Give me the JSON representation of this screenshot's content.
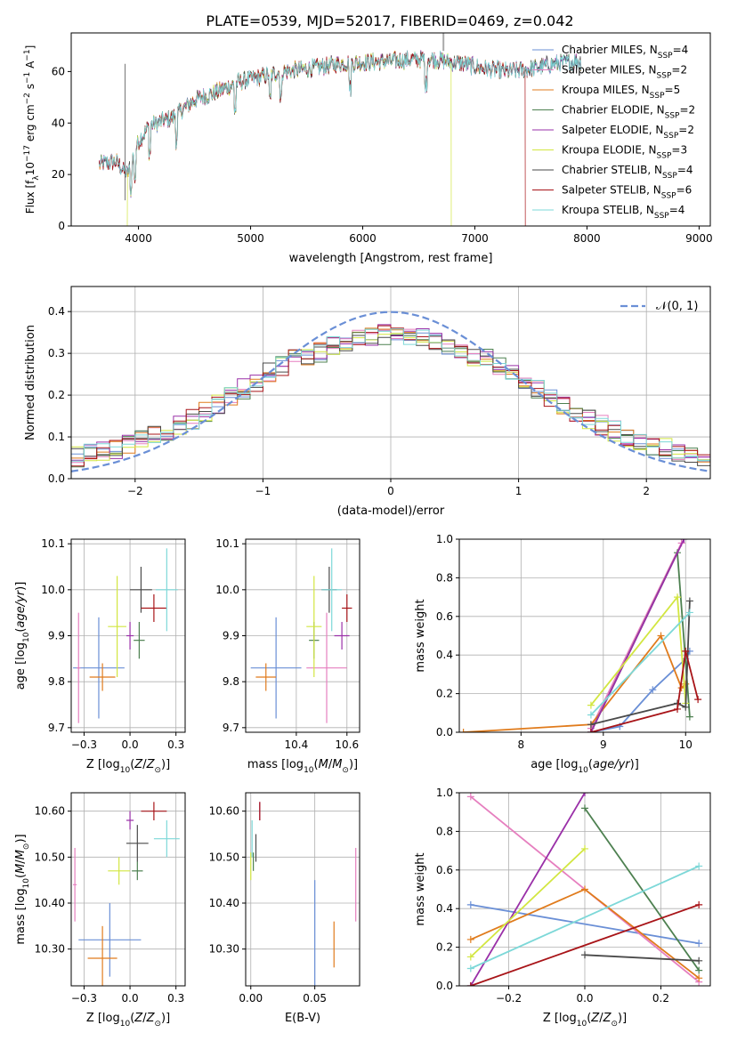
{
  "figure_title": "PLATE=0539, MJD=52017, FIBERID=0469, z=0.042",
  "colors": {
    "Chabrier MILES": "#6a8fd6",
    "Salpeter MILES": "#e67fbf",
    "Kroupa MILES": "#e07b1c",
    "Chabrier ELODIE": "#4d8050",
    "Salpeter ELODIE": "#9a30a8",
    "Kroupa ELODIE": "#d2e640",
    "Chabrier STELIB": "#4a4a4a",
    "Salpeter STELIB": "#a81418",
    "Kroupa STELIB": "#7dd8d8",
    "normal": "#6a8fd6"
  },
  "chart_data": [
    {
      "id": "spectrum",
      "type": "line",
      "xlabel": "wavelength [Angstrom, rest frame]",
      "ylabel": "Flux [f_λ10^-17 erg cm^-2 s^-1 A^-1]",
      "xlim": [
        3400,
        9100
      ],
      "ylim": [
        0,
        75
      ],
      "xticks": [
        4000,
        5000,
        6000,
        7000,
        8000,
        9000
      ],
      "yticks": [
        0,
        20,
        40,
        60
      ],
      "grid": false,
      "legend_position": "right",
      "legend": [
        {
          "name": "Chabrier MILES",
          "nssp": "4"
        },
        {
          "name": "Salpeter MILES",
          "nssp": "2"
        },
        {
          "name": "Kroupa MILES",
          "nssp": "5"
        },
        {
          "name": "Chabrier ELODIE",
          "nssp": "2"
        },
        {
          "name": "Salpeter ELODIE",
          "nssp": "2"
        },
        {
          "name": "Kroupa ELODIE",
          "nssp": "3"
        },
        {
          "name": "Chabrier STELIB",
          "nssp": "4"
        },
        {
          "name": "Salpeter STELIB",
          "nssp": "6"
        },
        {
          "name": "Kroupa STELIB",
          "nssp": "4"
        }
      ],
      "continuum": {
        "x": [
          3650,
          3800,
          3900,
          4000,
          4100,
          4300,
          4500,
          4700,
          4900,
          5100,
          5300,
          5500,
          5800,
          6200,
          6600,
          6900,
          7100,
          7300,
          7500,
          7700,
          7900
        ],
        "y": [
          24,
          25,
          20,
          33,
          39,
          42,
          49,
          52,
          56,
          58,
          60,
          61,
          63,
          64,
          65,
          63,
          61,
          60,
          61,
          63,
          64
        ]
      },
      "data_range": [
        3650,
        7950
      ],
      "model_cutoffs": {
        "Kroupa ELODIE": [
          3900,
          6790
        ],
        "Salpeter STELIB": [
          3650,
          7450
        ]
      }
    },
    {
      "id": "residual_hist",
      "type": "histogram",
      "xlabel": "(data-model)/error",
      "ylabel": "Normed distribution",
      "xlim": [
        -2.5,
        2.5
      ],
      "ylim": [
        0,
        0.46
      ],
      "xticks": [
        -2,
        -1,
        0,
        1,
        2
      ],
      "yticks": [
        0.0,
        0.1,
        0.2,
        0.3,
        0.4
      ],
      "grid": true,
      "legend_position": "top-right",
      "legend_label": "𝒩(0, 1)",
      "bin_width": 0.1
    },
    {
      "id": "age_vs_Z",
      "type": "scatter",
      "xlabel": "Z [log10(Z/Z⊙)]",
      "ylabel": "age [log10(age/yr)]",
      "xlim": [
        -0.32,
        0.3
      ],
      "ylim": [
        9.69,
        10.11
      ],
      "xticks": [
        -0.25,
        0.0,
        0.25
      ],
      "yticks": [
        9.7,
        9.8,
        9.9,
        10.0,
        10.1
      ],
      "grid": true,
      "points": [
        {
          "series": "Chabrier MILES",
          "x": -0.17,
          "xerr": 0.14,
          "y": 9.83,
          "yerr": 0.11
        },
        {
          "series": "Salpeter MILES",
          "x": -0.28,
          "xerr": 0.01,
          "y": 9.83,
          "yerr": 0.12
        },
        {
          "series": "Kroupa MILES",
          "x": -0.15,
          "xerr": 0.07,
          "y": 9.81,
          "yerr": 0.03
        },
        {
          "series": "Chabrier ELODIE",
          "x": 0.05,
          "xerr": 0.03,
          "y": 9.89,
          "yerr": 0.04
        },
        {
          "series": "Salpeter ELODIE",
          "x": 0.0,
          "xerr": 0.02,
          "y": 9.9,
          "yerr": 0.03
        },
        {
          "series": "Kroupa ELODIE",
          "x": -0.07,
          "xerr": 0.05,
          "y": 9.92,
          "yerr": 0.11
        },
        {
          "series": "Chabrier STELIB",
          "x": 0.06,
          "xerr": 0.06,
          "y": 10.0,
          "yerr": 0.05
        },
        {
          "series": "Salpeter STELIB",
          "x": 0.13,
          "xerr": 0.07,
          "y": 9.96,
          "yerr": 0.03
        },
        {
          "series": "Kroupa STELIB",
          "x": 0.2,
          "xerr": 0.06,
          "y": 10.0,
          "yerr": 0.09
        }
      ]
    },
    {
      "id": "age_vs_mass",
      "type": "scatter",
      "xlabel": "mass [log10(M/M⊙)]",
      "xlim": [
        10.2,
        10.65
      ],
      "ylim": [
        9.69,
        10.11
      ],
      "xticks": [
        10.4,
        10.6
      ],
      "yticks": [
        9.7,
        9.8,
        9.9,
        10.0,
        10.1
      ],
      "grid": true,
      "points": [
        {
          "series": "Chabrier MILES",
          "x": 10.32,
          "xerr": 0.1,
          "y": 9.83,
          "yerr": 0.11
        },
        {
          "series": "Salpeter MILES",
          "x": 10.52,
          "xerr": 0.08,
          "y": 9.83,
          "yerr": 0.12
        },
        {
          "series": "Kroupa MILES",
          "x": 10.28,
          "xerr": 0.04,
          "y": 9.81,
          "yerr": 0.03
        },
        {
          "series": "Chabrier ELODIE",
          "x": 10.47,
          "xerr": 0.02,
          "y": 9.89,
          "yerr": 0.04
        },
        {
          "series": "Salpeter ELODIE",
          "x": 10.58,
          "xerr": 0.03,
          "y": 9.9,
          "yerr": 0.03
        },
        {
          "series": "Kroupa ELODIE",
          "x": 10.47,
          "xerr": 0.03,
          "y": 9.92,
          "yerr": 0.11
        },
        {
          "series": "Chabrier STELIB",
          "x": 10.53,
          "xerr": 0.03,
          "y": 10.0,
          "yerr": 0.05
        },
        {
          "series": "Salpeter STELIB",
          "x": 10.6,
          "xerr": 0.02,
          "y": 9.96,
          "yerr": 0.03
        },
        {
          "series": "Kroupa STELIB",
          "x": 10.54,
          "xerr": 0.04,
          "y": 10.0,
          "yerr": 0.09
        }
      ]
    },
    {
      "id": "mw_vs_age",
      "type": "line",
      "xlabel": "age [log10(age/yr)]",
      "ylabel": "mass weight",
      "xlim": [
        7.25,
        10.3
      ],
      "ylim": [
        0,
        1
      ],
      "xticks": [
        8,
        9,
        10
      ],
      "yticks": [
        0.0,
        0.2,
        0.4,
        0.6,
        0.8,
        1.0
      ],
      "grid": true,
      "series": [
        {
          "name": "Chabrier MILES",
          "x": [
            8.85,
            9.2,
            9.6,
            10.0,
            10.05
          ],
          "y": [
            0.0,
            0.03,
            0.22,
            0.38,
            0.42
          ]
        },
        {
          "name": "Salpeter MILES",
          "x": [
            8.85,
            9.95
          ],
          "y": [
            0.02,
            0.98
          ]
        },
        {
          "name": "Kroupa MILES",
          "x": [
            7.3,
            8.85,
            9.7,
            9.95,
            10.0
          ],
          "y": [
            0.0,
            0.04,
            0.5,
            0.23,
            0.25
          ]
        },
        {
          "name": "Chabrier ELODIE",
          "x": [
            8.85,
            9.9,
            10.05
          ],
          "y": [
            0.0,
            0.93,
            0.08
          ]
        },
        {
          "name": "Salpeter ELODIE",
          "x": [
            8.85,
            9.98
          ],
          "y": [
            0.0,
            1.0
          ]
        },
        {
          "name": "Kroupa ELODIE",
          "x": [
            8.85,
            9.9,
            10.0
          ],
          "y": [
            0.14,
            0.7,
            0.15
          ]
        },
        {
          "name": "Chabrier STELIB",
          "x": [
            8.85,
            9.9,
            10.0,
            10.05
          ],
          "y": [
            0.04,
            0.15,
            0.13,
            0.68
          ]
        },
        {
          "name": "Salpeter STELIB",
          "x": [
            8.85,
            9.9,
            10.0,
            10.15
          ],
          "y": [
            0.0,
            0.12,
            0.42,
            0.17
          ]
        },
        {
          "name": "Kroupa STELIB",
          "x": [
            8.85,
            10.05
          ],
          "y": [
            0.09,
            0.62
          ]
        }
      ]
    },
    {
      "id": "mass_vs_Z",
      "type": "scatter",
      "xlabel": "Z [log10(Z/Z⊙)]",
      "ylabel": "mass [log10(M/M⊙)]",
      "xlim": [
        -0.32,
        0.3
      ],
      "ylim": [
        10.22,
        10.64
      ],
      "xticks": [
        -0.25,
        0.0,
        0.25
      ],
      "yticks": [
        10.3,
        10.4,
        10.5,
        10.6
      ],
      "grid": true,
      "points": [
        {
          "series": "Chabrier MILES",
          "x": -0.11,
          "xerr": 0.17,
          "y": 10.32,
          "yerr": 0.08
        },
        {
          "series": "Salpeter MILES",
          "x": -0.3,
          "xerr": 0.01,
          "y": 10.44,
          "yerr": 0.08
        },
        {
          "series": "Kroupa MILES",
          "x": -0.15,
          "xerr": 0.08,
          "y": 10.28,
          "yerr": 0.07
        },
        {
          "series": "Chabrier ELODIE",
          "x": 0.04,
          "xerr": 0.03,
          "y": 10.47,
          "yerr": 0.02
        },
        {
          "series": "Salpeter ELODIE",
          "x": 0.0,
          "xerr": 0.02,
          "y": 10.58,
          "yerr": 0.02
        },
        {
          "series": "Kroupa ELODIE",
          "x": -0.06,
          "xerr": 0.06,
          "y": 10.47,
          "yerr": 0.03
        },
        {
          "series": "Chabrier STELIB",
          "x": 0.04,
          "xerr": 0.06,
          "y": 10.53,
          "yerr": 0.04
        },
        {
          "series": "Salpeter STELIB",
          "x": 0.13,
          "xerr": 0.07,
          "y": 10.6,
          "yerr": 0.02
        },
        {
          "series": "Kroupa STELIB",
          "x": 0.2,
          "xerr": 0.07,
          "y": 10.54,
          "yerr": 0.04
        }
      ]
    },
    {
      "id": "mass_vs_ebv",
      "type": "scatter",
      "xlabel": "E(B-V)",
      "xlim": [
        -0.004,
        0.085
      ],
      "ylim": [
        10.22,
        10.64
      ],
      "xticks": [
        0.0,
        0.05
      ],
      "yticks": [
        10.3,
        10.4,
        10.5,
        10.6
      ],
      "grid": true,
      "points": [
        {
          "series": "Chabrier MILES",
          "x": 0.05,
          "xerr": 0,
          "y": 10.33,
          "yerr": 0.12
        },
        {
          "series": "Salpeter MILES",
          "x": 0.082,
          "xerr": 0,
          "y": 10.44,
          "yerr": 0.08
        },
        {
          "series": "Kroupa MILES",
          "x": 0.065,
          "xerr": 0,
          "y": 10.31,
          "yerr": 0.05
        },
        {
          "series": "Chabrier ELODIE",
          "x": 0.002,
          "xerr": 0,
          "y": 10.49,
          "yerr": 0.02
        },
        {
          "series": "Salpeter ELODIE",
          "x": 0.007,
          "xerr": 0,
          "y": 10.6,
          "yerr": 0.02
        },
        {
          "series": "Kroupa ELODIE",
          "x": 0.0,
          "xerr": 0,
          "y": 10.48,
          "yerr": 0.03
        },
        {
          "series": "Chabrier STELIB",
          "x": 0.004,
          "xerr": 0,
          "y": 10.52,
          "yerr": 0.03
        },
        {
          "series": "Salpeter STELIB",
          "x": 0.007,
          "xerr": 0,
          "y": 10.6,
          "yerr": 0.02
        },
        {
          "series": "Kroupa STELIB",
          "x": 0.001,
          "xerr": 0,
          "y": 10.54,
          "yerr": 0.04
        }
      ]
    },
    {
      "id": "mw_vs_Z",
      "type": "line",
      "xlabel": "Z [log10(Z/Z⊙)]",
      "ylabel": "mass weight",
      "xlim": [
        -0.33,
        0.33
      ],
      "ylim": [
        0,
        1
      ],
      "xticks": [
        -0.2,
        0.0,
        0.2
      ],
      "yticks": [
        0.0,
        0.2,
        0.4,
        0.6,
        0.8,
        1.0
      ],
      "grid": true,
      "series": [
        {
          "name": "Chabrier MILES",
          "x": [
            -0.3,
            0.3
          ],
          "y": [
            0.42,
            0.22
          ]
        },
        {
          "name": "Salpeter MILES",
          "x": [
            -0.3,
            0.3
          ],
          "y": [
            0.98,
            0.02
          ]
        },
        {
          "name": "Kroupa MILES",
          "x": [
            -0.3,
            0.0,
            0.3
          ],
          "y": [
            0.24,
            0.5,
            0.04
          ]
        },
        {
          "name": "Chabrier ELODIE",
          "x": [
            0.0,
            0.3
          ],
          "y": [
            0.92,
            0.08
          ]
        },
        {
          "name": "Salpeter ELODIE",
          "x": [
            -0.3,
            0.0
          ],
          "y": [
            0.0,
            1.0
          ]
        },
        {
          "name": "Kroupa ELODIE",
          "x": [
            -0.3,
            0.0
          ],
          "y": [
            0.15,
            0.71
          ]
        },
        {
          "name": "Chabrier STELIB",
          "x": [
            0.0,
            0.3
          ],
          "y": [
            0.16,
            0.13
          ]
        },
        {
          "name": "Salpeter STELIB",
          "x": [
            -0.3,
            0.3
          ],
          "y": [
            0.0,
            0.42
          ]
        },
        {
          "name": "Kroupa STELIB",
          "x": [
            -0.3,
            0.3
          ],
          "y": [
            0.09,
            0.62
          ]
        }
      ]
    }
  ]
}
